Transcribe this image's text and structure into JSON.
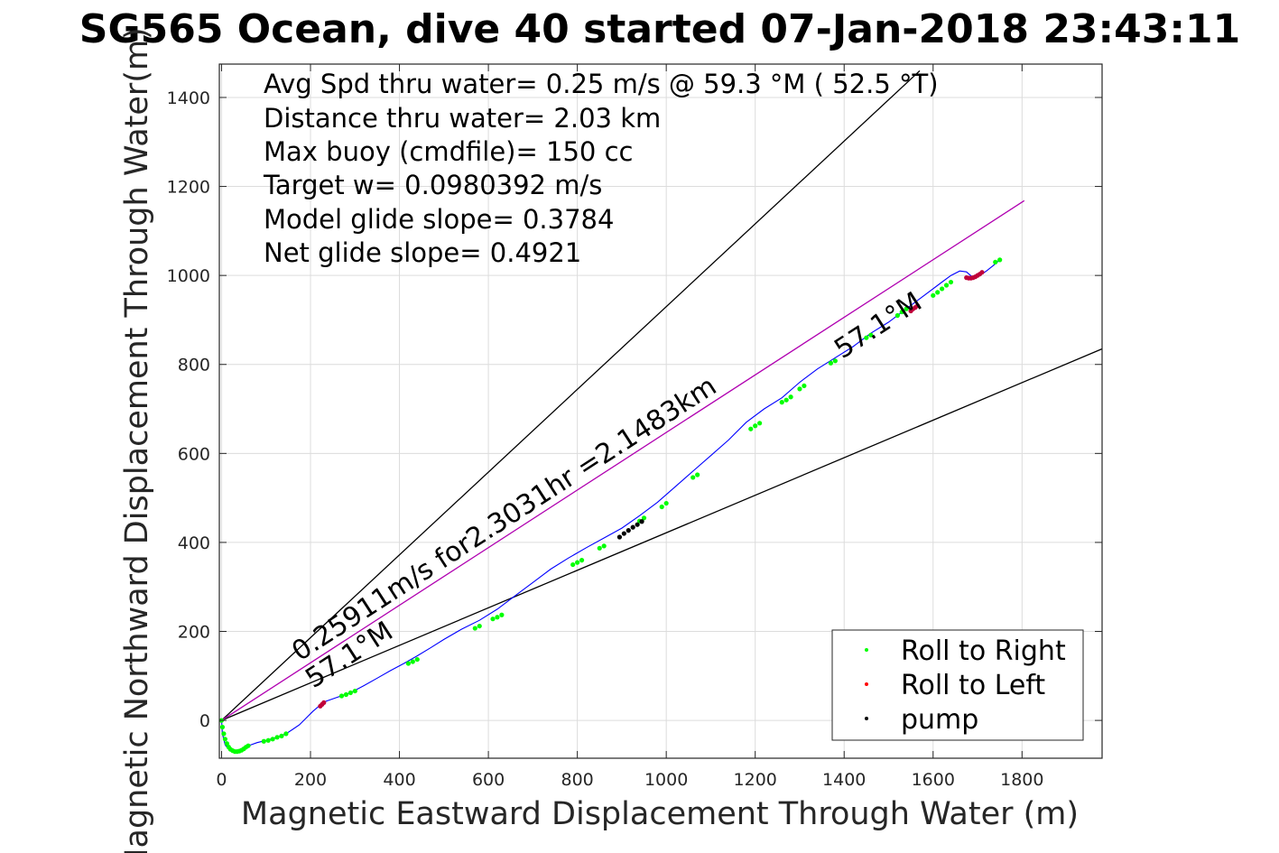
{
  "chart_data": {
    "type": "scatter",
    "title": "SG565 Ocean, dive 40 started 07-Jan-2018 23:43:11",
    "xlabel": "Magnetic Eastward Displacement Through Water (m)",
    "ylabel": "Magnetic Northward Displacement Through Water(m)",
    "xlim": [
      -5,
      1980
    ],
    "ylim": [
      -85,
      1475
    ],
    "x_ticks": [
      0,
      200,
      400,
      600,
      800,
      1000,
      1200,
      1400,
      1600,
      1800
    ],
    "y_ticks": [
      0,
      200,
      400,
      600,
      800,
      1000,
      1200,
      1400
    ],
    "grid": true,
    "legend_position": "bottom-right",
    "stats": [
      "Avg Spd thru water=  0.25 m/s @  59.3 °M ( 52.5 °T)",
      "Distance thru water=  2.03 km",
      "Max buoy (cmdfile)= 150 cc",
      "Target w= 0.0980392 m/s",
      "Model glide slope= 0.3784",
      "Net glide slope= 0.4921"
    ],
    "annotations": {
      "speed_line": "0.25911m/s for2.3031hr =2.1483km",
      "heading_lower": "57.1°M",
      "heading_upper": "57.1°M"
    },
    "reference_lines": [
      {
        "x": [
          0,
          1570
        ],
        "y": [
          0,
          1460
        ],
        "color": "#000000"
      },
      {
        "x": [
          0,
          1980
        ],
        "y": [
          0,
          835
        ],
        "color": "#000000"
      },
      {
        "x": [
          0,
          1805
        ],
        "y": [
          0,
          1168
        ],
        "color": "#b000b0"
      }
    ],
    "track": {
      "color": "#0000ff",
      "x": [
        0,
        2,
        8,
        18,
        30,
        45,
        60,
        80,
        100,
        125,
        145,
        160,
        175,
        190,
        205,
        220,
        235,
        260,
        290,
        320,
        350,
        380,
        410,
        440,
        470,
        500,
        540,
        580,
        620,
        660,
        700,
        740,
        780,
        820,
        860,
        900,
        940,
        980,
        1020,
        1060,
        1100,
        1140,
        1180,
        1220,
        1260,
        1300,
        1340,
        1380,
        1420,
        1460,
        1500,
        1540,
        1580,
        1620,
        1640,
        1660,
        1675,
        1690,
        1705,
        1720,
        1735,
        1750
      ],
      "y": [
        0,
        -30,
        -55,
        -67,
        -70,
        -65,
        -57,
        -50,
        -45,
        -38,
        -30,
        -20,
        -10,
        5,
        20,
        33,
        43,
        52,
        62,
        78,
        95,
        112,
        128,
        145,
        163,
        182,
        205,
        225,
        250,
        280,
        310,
        340,
        365,
        388,
        410,
        432,
        460,
        490,
        525,
        560,
        595,
        630,
        670,
        700,
        725,
        760,
        790,
        815,
        840,
        870,
        895,
        925,
        955,
        985,
        1000,
        1010,
        1008,
        995,
        1000,
        1010,
        1022,
        1035
      ]
    },
    "series": [
      {
        "name": "Roll to Right",
        "color": "#00ff00",
        "x": [
          0,
          2,
          5,
          8,
          12,
          16,
          20,
          25,
          30,
          35,
          40,
          45,
          50,
          55,
          60,
          95,
          105,
          115,
          125,
          135,
          145,
          270,
          280,
          290,
          300,
          420,
          430,
          440,
          570,
          580,
          610,
          620,
          630,
          790,
          800,
          810,
          850,
          860,
          940,
          950,
          990,
          1000,
          1060,
          1070,
          1190,
          1200,
          1210,
          1260,
          1270,
          1280,
          1300,
          1310,
          1370,
          1380,
          1450,
          1460,
          1520,
          1530,
          1540,
          1600,
          1610,
          1620,
          1630,
          1640,
          1740,
          1750
        ],
        "y": [
          0,
          -15,
          -30,
          -42,
          -52,
          -60,
          -65,
          -68,
          -70,
          -70,
          -69,
          -67,
          -64,
          -60,
          -57,
          -47,
          -45,
          -42,
          -38,
          -35,
          -30,
          55,
          58,
          62,
          66,
          128,
          132,
          137,
          207,
          212,
          228,
          232,
          237,
          350,
          355,
          360,
          387,
          392,
          448,
          455,
          480,
          488,
          546,
          552,
          655,
          662,
          668,
          715,
          720,
          727,
          745,
          752,
          803,
          808,
          860,
          866,
          910,
          918,
          925,
          955,
          962,
          970,
          978,
          985,
          1030,
          1035
        ]
      },
      {
        "name": "Roll to Left",
        "color": "#ff0000",
        "x": [
          222,
          226,
          230,
          1550,
          1555,
          1560,
          1565,
          1675,
          1680,
          1685,
          1690,
          1695,
          1700,
          1705,
          1710
        ],
        "y": [
          32,
          36,
          40,
          920,
          925,
          928,
          932,
          995,
          994,
          994,
          995,
          997,
          1000,
          1003,
          1007
        ],
        "marker_color": "#c0003a"
      },
      {
        "name": "pump",
        "color": "#000000",
        "x": [
          895,
          905,
          915,
          925,
          935,
          945
        ],
        "y": [
          412,
          420,
          427,
          434,
          440,
          447
        ]
      }
    ]
  }
}
